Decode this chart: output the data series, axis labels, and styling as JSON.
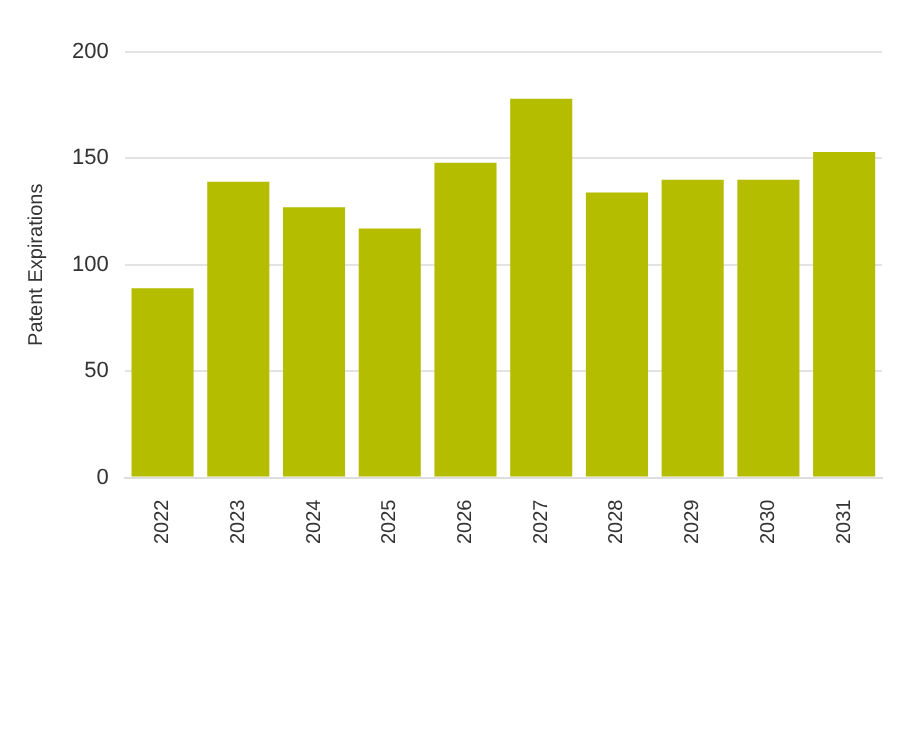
{
  "chart_data": {
    "type": "bar",
    "ylabel": "Patent Expirations",
    "categories": [
      "2022",
      "2023",
      "2024",
      "2025",
      "2026",
      "2027",
      "2028",
      "2029",
      "2030",
      "2031"
    ],
    "values": [
      89,
      139,
      127,
      117,
      148,
      178,
      134,
      140,
      140,
      153
    ],
    "color": "#b5bd00",
    "ylim": [
      0,
      200
    ],
    "yticks": [
      0,
      50,
      100,
      150,
      200
    ],
    "grid": "y"
  }
}
